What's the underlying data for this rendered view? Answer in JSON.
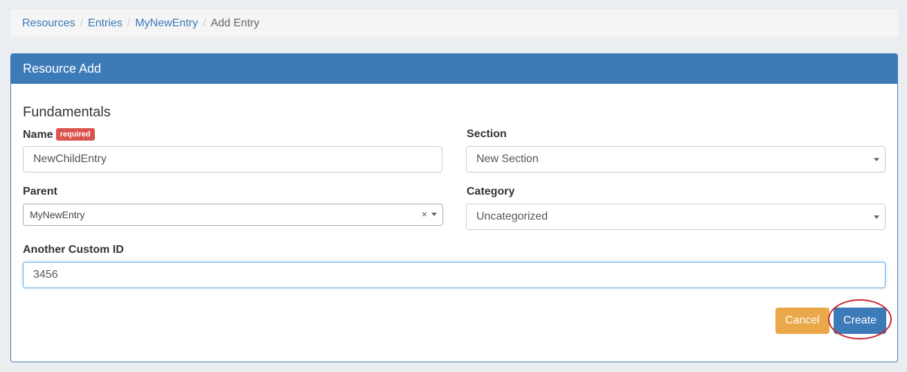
{
  "breadcrumb": [
    "Resources",
    "Entries",
    "MyNewEntry",
    "Add Entry"
  ],
  "panel": {
    "title": "Resource Add",
    "section": "Fundamentals"
  },
  "form": {
    "name": {
      "label": "Name",
      "badge": "required",
      "value": "NewChildEntry"
    },
    "section": {
      "label": "Section",
      "value": "New Section"
    },
    "parent": {
      "label": "Parent",
      "value": "MyNewEntry",
      "clear": "×"
    },
    "category": {
      "label": "Category",
      "value": "Uncategorized"
    },
    "custom_id": {
      "label": "Another Custom ID",
      "value": "3456"
    }
  },
  "buttons": {
    "cancel": "Cancel",
    "create": "Create"
  },
  "colors": {
    "primary": "#3d7ab8",
    "warning": "#eaa84a",
    "danger": "#d9534f",
    "highlight": "#c8242c"
  }
}
